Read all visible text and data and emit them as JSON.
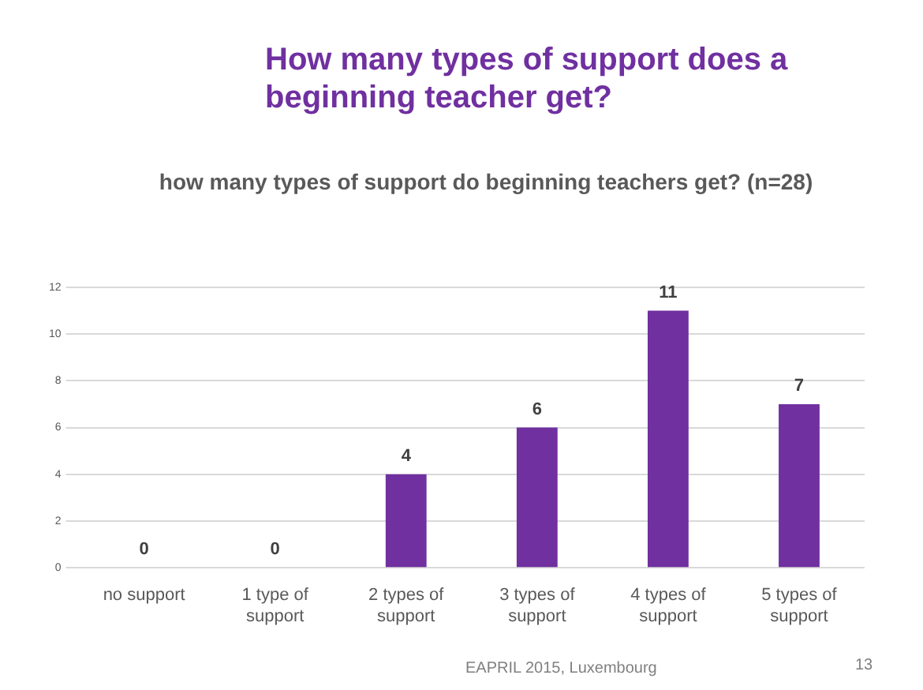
{
  "chart_data": {
    "type": "bar",
    "title": "How many types of support does a beginning teacher get?",
    "subtitle": "how many types of support do beginning teachers get? (n=28)",
    "categories": [
      "no support",
      "1 type of support",
      "2 types of support",
      "3 types of support",
      "4 types of support",
      "5 types of support"
    ],
    "values": [
      0,
      0,
      4,
      6,
      11,
      7
    ],
    "color": "#7030a0",
    "ylim": [
      0,
      12
    ],
    "yticks": [
      0,
      2,
      4,
      6,
      8,
      10,
      12
    ],
    "grid": "y",
    "data_labels": true,
    "legend": false,
    "annotations": [
      "EAPRIL 2015, Luxembourg",
      "13"
    ]
  }
}
